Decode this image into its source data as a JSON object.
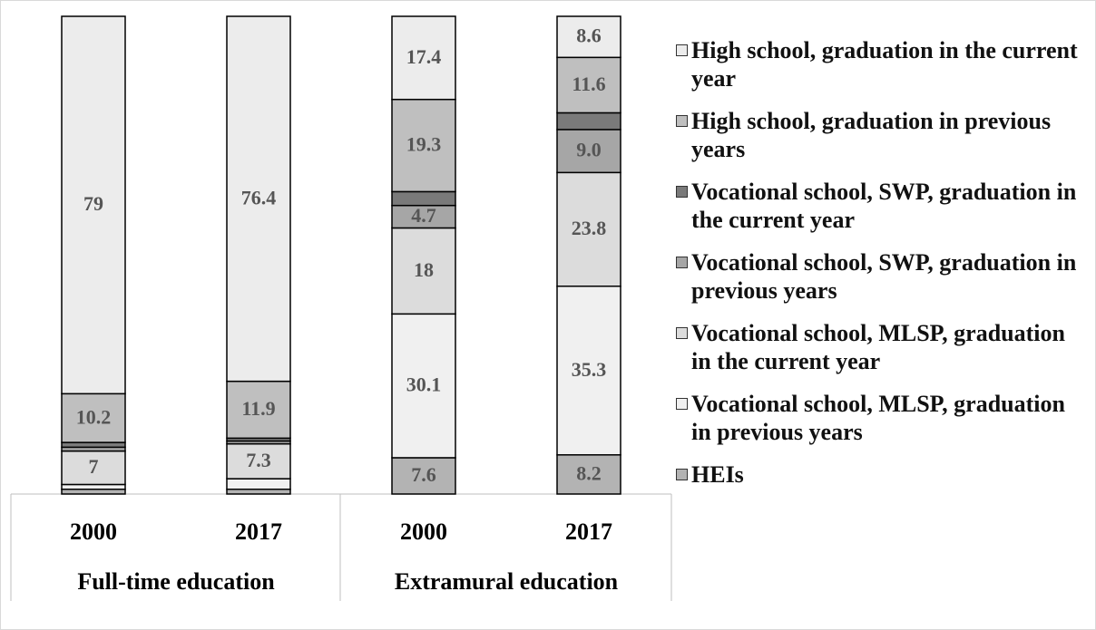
{
  "chart_data": {
    "type": "stacked_bar",
    "categories": [
      "2000",
      "2017",
      "2000",
      "2017"
    ],
    "groups": [
      "Full-time education",
      "Extramural education"
    ],
    "ylim": [
      0,
      100
    ],
    "series": [
      {
        "name": "HEIs",
        "color": "#b3b3b3",
        "values": [
          1.0,
          1.0,
          7.6,
          8.2
        ],
        "value_labels": [
          null,
          null,
          "7.6",
          "8.2"
        ]
      },
      {
        "name": "Vocational school, MLSP, graduation in previous years",
        "color": "#f0f0f0",
        "values": [
          1.0,
          2.2,
          30.1,
          35.3
        ],
        "value_labels": [
          null,
          null,
          "30.1",
          "35.3"
        ]
      },
      {
        "name": "Vocational school, MLSP, graduation in the current year",
        "color": "#dcdcdc",
        "values": [
          7,
          7.3,
          18,
          23.8
        ],
        "value_labels": [
          "7",
          "7.3",
          "18",
          "23.8"
        ]
      },
      {
        "name": "Vocational school, SWP, graduation in previous years",
        "color": "#a6a6a6",
        "values": [
          0.8,
          0.6,
          4.7,
          9.0
        ],
        "value_labels": [
          null,
          null,
          "4.7",
          "9.0"
        ]
      },
      {
        "name": "Vocational school, SWP, graduation in the current year",
        "color": "#7a7a7a",
        "values": [
          1.0,
          0.6,
          2.9,
          3.5
        ],
        "value_labels": [
          null,
          null,
          null,
          null
        ]
      },
      {
        "name": "High school, graduation in previous years",
        "color": "#bfbfbf",
        "values": [
          10.2,
          11.9,
          19.3,
          11.6
        ],
        "value_labels": [
          "10.2",
          "11.9",
          "19.3",
          "11.6"
        ]
      },
      {
        "name": "High school, graduation in the current year",
        "color": "#ececec",
        "values": [
          79,
          76.4,
          17.4,
          8.6
        ],
        "value_labels": [
          "79",
          "76.4",
          "17.4",
          "8.6"
        ]
      }
    ]
  }
}
